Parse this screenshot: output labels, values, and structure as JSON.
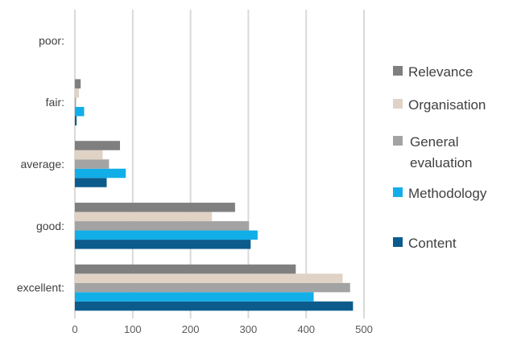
{
  "chart_data": {
    "type": "bar",
    "orientation": "horizontal",
    "categories": [
      "excellent:",
      "good:",
      "average:",
      "fair:",
      "poor:"
    ],
    "series": [
      {
        "name": "Content",
        "color": "#0b5b8c",
        "values": [
          481,
          304,
          55,
          3,
          0
        ]
      },
      {
        "name": "Methodology",
        "color": "#12aee8",
        "values": [
          413,
          316,
          88,
          16,
          0
        ]
      },
      {
        "name": "General evaluation",
        "color": "#a3a3a3",
        "values": [
          476,
          301,
          59,
          2,
          0
        ]
      },
      {
        "name": "Organisation",
        "color": "#e0d2c5",
        "values": [
          463,
          237,
          48,
          7,
          0
        ]
      },
      {
        "name": "Relevance",
        "color": "#7f7f7f",
        "values": [
          382,
          277,
          78,
          10,
          0
        ]
      }
    ],
    "legend_order": [
      "Relevance",
      "Organisation",
      "General evaluation",
      "Methodology",
      "Content"
    ],
    "legend_lines": {
      "Relevance": [
        "Relevance"
      ],
      "Organisation": [
        "Organisation"
      ],
      "General evaluation": [
        "General",
        "evaluation"
      ],
      "Methodology": [
        "Methodology"
      ],
      "Content": [
        "Content"
      ]
    },
    "x_ticks": [
      0,
      100,
      200,
      300,
      400,
      500
    ],
    "xlim": [
      0,
      500
    ],
    "grid": "vertical",
    "legend_position": "right"
  }
}
